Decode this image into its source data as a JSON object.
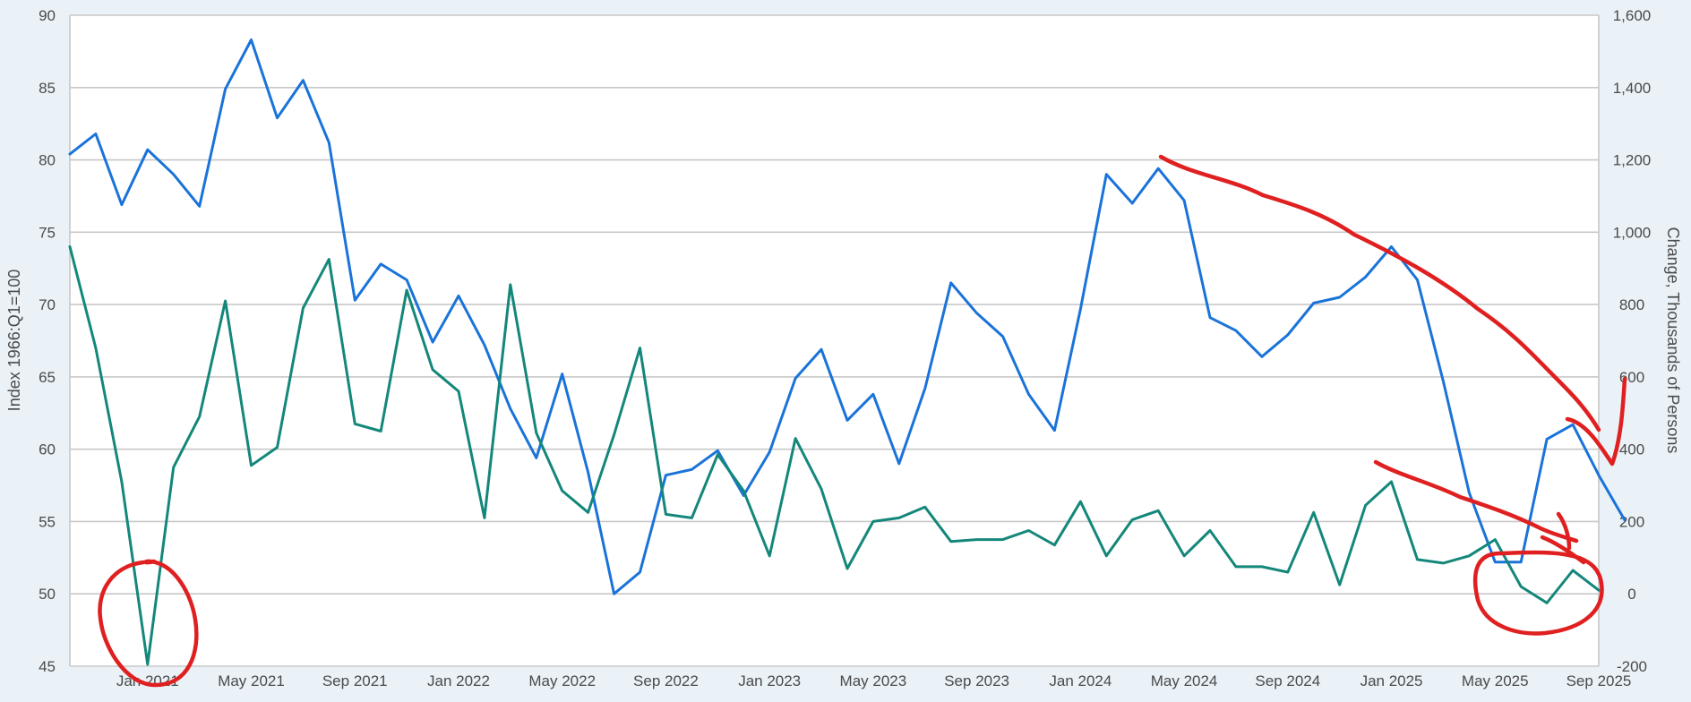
{
  "chart_data": {
    "type": "line",
    "title": "",
    "y_left": {
      "label": "Index 1966:Q1=100",
      "ylim": [
        45,
        90
      ],
      "ticks": [
        45,
        50,
        55,
        60,
        65,
        70,
        75,
        80,
        85,
        90
      ]
    },
    "y_right": {
      "label": "Change, Thousands of Persons",
      "ylim": [
        -200,
        1600
      ],
      "ticks": [
        "-200",
        "0",
        "200",
        "400",
        "600",
        "800",
        "1,000",
        "1,200",
        "1,400",
        "1,600"
      ]
    },
    "x_range": [
      "2020-10",
      "2025-09"
    ],
    "x_ticks": [
      "Jan 2021",
      "May 2021",
      "Sep 2021",
      "Jan 2022",
      "May 2022",
      "Sep 2022",
      "Jan 2023",
      "May 2023",
      "Sep 2023",
      "Jan 2024",
      "May 2024",
      "Sep 2024",
      "Jan 2025",
      "May 2025",
      "Sep 2025"
    ],
    "grid": true,
    "legend": "none",
    "series": [
      {
        "axis": "left",
        "color": "#1a73d9",
        "points": [
          [
            "2020-10",
            80.4
          ],
          [
            "2020-11",
            81.8
          ],
          [
            "2020-12",
            76.9
          ],
          [
            "2021-01",
            80.7
          ],
          [
            "2021-02",
            79.0
          ],
          [
            "2021-03",
            76.8
          ],
          [
            "2021-04",
            84.9
          ],
          [
            "2021-05",
            88.3
          ],
          [
            "2021-06",
            82.9
          ],
          [
            "2021-07",
            85.5
          ],
          [
            "2021-08",
            81.2
          ],
          [
            "2021-09",
            70.3
          ],
          [
            "2021-10",
            72.8
          ],
          [
            "2021-11",
            71.7
          ],
          [
            "2021-12",
            67.4
          ],
          [
            "2022-01",
            70.6
          ],
          [
            "2022-02",
            67.2
          ],
          [
            "2022-03",
            62.8
          ],
          [
            "2022-04",
            59.4
          ],
          [
            "2022-05",
            65.2
          ],
          [
            "2022-06",
            58.4
          ],
          [
            "2022-07",
            50.0
          ],
          [
            "2022-08",
            51.5
          ],
          [
            "2022-09",
            58.2
          ],
          [
            "2022-10",
            58.6
          ],
          [
            "2022-11",
            59.9
          ],
          [
            "2022-12",
            56.8
          ],
          [
            "2023-01",
            59.8
          ],
          [
            "2023-02",
            64.9
          ],
          [
            "2023-03",
            66.9
          ],
          [
            "2023-04",
            62.0
          ],
          [
            "2023-05",
            63.8
          ],
          [
            "2023-06",
            59.0
          ],
          [
            "2023-07",
            64.2
          ],
          [
            "2023-08",
            71.5
          ],
          [
            "2023-09",
            69.4
          ],
          [
            "2023-10",
            67.8
          ],
          [
            "2023-11",
            63.8
          ],
          [
            "2023-12",
            61.3
          ],
          [
            "2024-01",
            69.7
          ],
          [
            "2024-02",
            79.0
          ],
          [
            "2024-03",
            77.0
          ],
          [
            "2024-04",
            79.4
          ],
          [
            "2024-05",
            77.2
          ],
          [
            "2024-06",
            69.1
          ],
          [
            "2024-07",
            68.2
          ],
          [
            "2024-08",
            66.4
          ],
          [
            "2024-09",
            67.9
          ],
          [
            "2024-10",
            70.1
          ],
          [
            "2024-11",
            70.5
          ],
          [
            "2024-12",
            71.9
          ],
          [
            "2025-01",
            74.0
          ],
          [
            "2025-02",
            71.7
          ],
          [
            "2025-03",
            64.7
          ],
          [
            "2025-04",
            57.0
          ],
          [
            "2025-05",
            52.2
          ],
          [
            "2025-06",
            52.2
          ],
          [
            "2025-07",
            60.7
          ],
          [
            "2025-08",
            61.7
          ],
          [
            "2025-09",
            58.2
          ],
          [
            "2025-10",
            55.1
          ]
        ]
      },
      {
        "axis": "right",
        "color": "#14877a",
        "points": [
          [
            "2020-10",
            960
          ],
          [
            "2020-11",
            680
          ],
          [
            "2020-12",
            310
          ],
          [
            "2021-01",
            -195
          ],
          [
            "2021-02",
            350
          ],
          [
            "2021-03",
            490
          ],
          [
            "2021-04",
            810
          ],
          [
            "2021-05",
            355
          ],
          [
            "2021-06",
            405
          ],
          [
            "2021-07",
            790
          ],
          [
            "2021-08",
            925
          ],
          [
            "2021-09",
            470
          ],
          [
            "2021-10",
            450
          ],
          [
            "2021-11",
            840
          ],
          [
            "2021-12",
            620
          ],
          [
            "2022-01",
            560
          ],
          [
            "2022-02",
            210
          ],
          [
            "2022-03",
            855
          ],
          [
            "2022-04",
            445
          ],
          [
            "2022-05",
            285
          ],
          [
            "2022-06",
            225
          ],
          [
            "2022-07",
            440
          ],
          [
            "2022-08",
            680
          ],
          [
            "2022-09",
            220
          ],
          [
            "2022-10",
            210
          ],
          [
            "2022-11",
            385
          ],
          [
            "2022-12",
            285
          ],
          [
            "2023-01",
            105
          ],
          [
            "2023-02",
            430
          ],
          [
            "2023-03",
            290
          ],
          [
            "2023-04",
            70
          ],
          [
            "2023-05",
            200
          ],
          [
            "2023-06",
            210
          ],
          [
            "2023-07",
            240
          ],
          [
            "2023-08",
            145
          ],
          [
            "2023-09",
            150
          ],
          [
            "2023-10",
            150
          ],
          [
            "2023-11",
            175
          ],
          [
            "2023-12",
            135
          ],
          [
            "2024-01",
            255
          ],
          [
            "2024-02",
            105
          ],
          [
            "2024-03",
            205
          ],
          [
            "2024-04",
            230
          ],
          [
            "2024-05",
            105
          ],
          [
            "2024-06",
            175
          ],
          [
            "2024-07",
            75
          ],
          [
            "2024-08",
            75
          ],
          [
            "2024-09",
            60
          ],
          [
            "2024-10",
            225
          ],
          [
            "2024-11",
            25
          ],
          [
            "2024-12",
            245
          ],
          [
            "2025-01",
            310
          ],
          [
            "2025-02",
            95
          ],
          [
            "2025-03",
            85
          ],
          [
            "2025-04",
            105
          ],
          [
            "2025-05",
            150
          ],
          [
            "2025-06",
            20
          ],
          [
            "2025-07",
            -25
          ],
          [
            "2025-08",
            65
          ],
          [
            "2025-09",
            10
          ]
        ]
      }
    ],
    "annotations": [
      {
        "type": "handdrawn-circle",
        "color": "#e02020",
        "near": "Jan 2021 low"
      },
      {
        "type": "handdrawn-circle",
        "color": "#e02020",
        "near": "mid-2025 lows"
      },
      {
        "type": "handdrawn-arrow",
        "color": "#e02020",
        "from": "Apr 2024",
        "to": "Aug 2025",
        "axis": "left"
      },
      {
        "type": "handdrawn-arrow",
        "color": "#e02020",
        "from": "Dec 2024",
        "to": "Aug 2025",
        "axis": "right"
      }
    ]
  }
}
